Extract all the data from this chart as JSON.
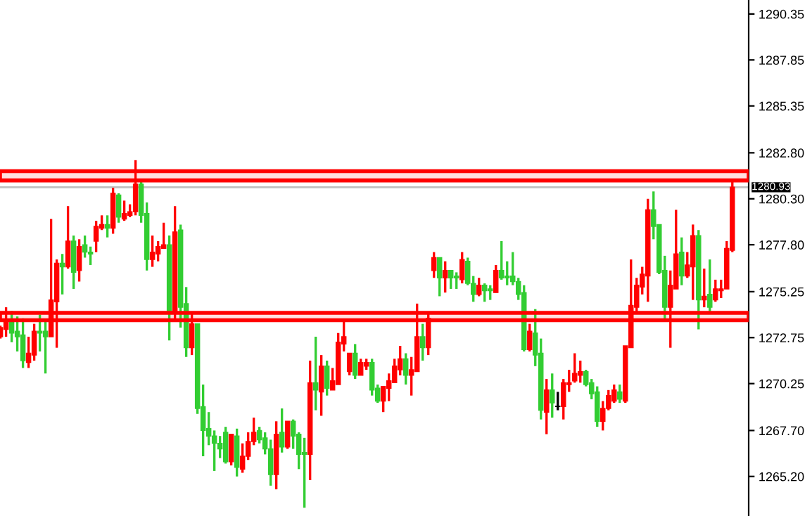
{
  "chart_data": {
    "type": "candlestick",
    "categories": [
      null,
      null,
      null,
      null,
      null,
      null,
      null,
      null,
      null,
      null,
      null,
      null,
      null,
      null,
      null,
      null,
      null,
      null,
      null,
      null,
      null,
      null,
      null,
      null,
      null,
      null,
      null,
      null,
      null,
      null,
      null,
      null,
      null,
      null,
      null,
      null,
      null,
      null,
      null,
      null,
      null,
      null,
      null,
      null,
      null,
      null,
      null,
      null,
      null,
      null,
      null,
      null,
      null,
      null,
      null,
      null,
      null,
      null,
      null,
      null,
      null,
      null,
      null,
      null,
      null,
      null,
      null,
      null,
      null,
      null,
      null,
      null,
      null,
      null,
      null,
      null,
      null,
      null,
      null,
      null,
      null,
      null,
      null,
      null,
      null,
      null,
      null,
      null,
      null,
      null,
      null,
      null,
      null,
      null,
      null,
      null,
      null,
      null,
      null,
      null,
      null,
      null,
      null,
      null,
      null,
      null,
      null,
      null,
      null,
      null,
      null,
      null,
      null,
      null,
      null,
      null,
      null,
      null,
      null,
      null,
      null,
      null,
      null,
      null,
      null,
      null,
      null,
      null,
      null,
      null,
      null
    ],
    "ohlc": [
      [
        1272.8,
        1273.4,
        1272.7,
        1273.3
      ],
      [
        1273.2,
        1274.4,
        1272.8,
        1273.6
      ],
      [
        1273.6,
        1274.2,
        1272.5,
        1273.0
      ],
      [
        1273.1,
        1273.9,
        1272.0,
        1272.8
      ],
      [
        1272.9,
        1273.8,
        1271.1,
        1271.5
      ],
      [
        1271.4,
        1272.8,
        1271.1,
        1271.9
      ],
      [
        1271.8,
        1273.5,
        1271.5,
        1273.1
      ],
      [
        1273.1,
        1274.0,
        1272.0,
        1273.0
      ],
      [
        1273.1,
        1273.6,
        1270.8,
        1272.8
      ],
      [
        1272.8,
        1279.2,
        1272.8,
        1274.8
      ],
      [
        1274.7,
        1277.0,
        1272.2,
        1276.8
      ],
      [
        1276.8,
        1277.3,
        1275.1,
        1276.6
      ],
      [
        1276.6,
        1279.9,
        1276.5,
        1278.0
      ],
      [
        1278.0,
        1278.3,
        1275.4,
        1276.3
      ],
      [
        1276.4,
        1278.1,
        1275.8,
        1277.7
      ],
      [
        1277.8,
        1278.3,
        1277.1,
        1277.4
      ],
      [
        1277.4,
        1277.7,
        1276.7,
        1277.3
      ],
      [
        1278.0,
        1279.1,
        1277.4,
        1278.8
      ],
      [
        1278.7,
        1279.4,
        1278.6,
        1278.9
      ],
      [
        1278.9,
        1279.4,
        1278.2,
        1278.7
      ],
      [
        1278.7,
        1280.9,
        1278.4,
        1280.6
      ],
      [
        1280.5,
        1280.6,
        1279.0,
        1279.3
      ],
      [
        1279.2,
        1280.2,
        1279.1,
        1279.5
      ],
      [
        1279.4,
        1280.0,
        1279.3,
        1279.6
      ],
      [
        1279.6,
        1282.4,
        1279.4,
        1281.1
      ],
      [
        1281.1,
        1281.4,
        1279.0,
        1279.4
      ],
      [
        1279.5,
        1280.1,
        1276.4,
        1277.0
      ],
      [
        1277.0,
        1278.3,
        1276.6,
        1277.4
      ],
      [
        1277.3,
        1278.0,
        1276.9,
        1277.7
      ],
      [
        1277.6,
        1279.0,
        1277.6,
        1277.8
      ],
      [
        1277.8,
        1278.3,
        1272.6,
        1274.1
      ],
      [
        1274.1,
        1279.9,
        1273.6,
        1278.5
      ],
      [
        1278.6,
        1278.9,
        1273.3,
        1274.4
      ],
      [
        1274.6,
        1275.5,
        1271.7,
        1272.2
      ],
      [
        1272.2,
        1274.1,
        1271.8,
        1273.5
      ],
      [
        1273.5,
        1273.5,
        1268.6,
        1268.9
      ],
      [
        1269.0,
        1270.2,
        1266.3,
        1267.7
      ],
      [
        1267.8,
        1268.7,
        1266.9,
        1267.4
      ],
      [
        1267.4,
        1267.7,
        1265.5,
        1267.0
      ],
      [
        1267.0,
        1267.4,
        1266.2,
        1266.7
      ],
      [
        1267.6,
        1267.9,
        1265.9,
        1266.0
      ],
      [
        1266.0,
        1267.5,
        1265.8,
        1267.5
      ],
      [
        1267.4,
        1267.8,
        1265.2,
        1265.7
      ],
      [
        1265.6,
        1267.0,
        1265.4,
        1266.3
      ],
      [
        1266.3,
        1267.6,
        1266.1,
        1267.1
      ],
      [
        1267.1,
        1268.4,
        1266.9,
        1267.6
      ],
      [
        1267.7,
        1267.9,
        1267.0,
        1267.2
      ],
      [
        1267.3,
        1267.6,
        1266.4,
        1266.7
      ],
      [
        1266.7,
        1267.2,
        1264.7,
        1265.3
      ],
      [
        1265.3,
        1268.2,
        1264.5,
        1267.5
      ],
      [
        1267.6,
        1268.9,
        1266.5,
        1266.8
      ],
      [
        1266.8,
        1268.2,
        1266.7,
        1268.2
      ],
      [
        1268.2,
        1268.3,
        1266.7,
        1267.4
      ],
      [
        1267.5,
        1267.6,
        1265.6,
        1266.4
      ],
      [
        1266.5,
        1267.3,
        1263.5,
        1266.4
      ],
      [
        1266.4,
        1271.5,
        1265.0,
        1270.3
      ],
      [
        1270.3,
        1272.8,
        1268.8,
        1269.9
      ],
      [
        1269.8,
        1271.8,
        1268.5,
        1271.2
      ],
      [
        1271.2,
        1271.5,
        1269.6,
        1270.0
      ],
      [
        1269.9,
        1271.1,
        1269.9,
        1270.4
      ],
      [
        1270.2,
        1273.0,
        1270.2,
        1272.5
      ],
      [
        1272.4,
        1273.7,
        1272.0,
        1272.8
      ],
      [
        1270.9,
        1271.9,
        1270.7,
        1271.9
      ],
      [
        1271.9,
        1272.4,
        1270.5,
        1270.7
      ],
      [
        1270.7,
        1271.6,
        1270.7,
        1271.4
      ],
      [
        1271.2,
        1271.6,
        1271.0,
        1271.4
      ],
      [
        1271.4,
        1271.6,
        1269.6,
        1269.9
      ],
      [
        1270.0,
        1270.2,
        1269.2,
        1269.3
      ],
      [
        1269.3,
        1270.1,
        1268.7,
        1270.1
      ],
      [
        1270.0,
        1270.8,
        1269.3,
        1270.4
      ],
      [
        1270.3,
        1271.6,
        1270.3,
        1271.2
      ],
      [
        1271.0,
        1272.3,
        1270.7,
        1271.6
      ],
      [
        1271.6,
        1271.9,
        1270.2,
        1270.7
      ],
      [
        1270.7,
        1271.7,
        1269.6,
        1271.0
      ],
      [
        1270.9,
        1274.6,
        1270.9,
        1272.8
      ],
      [
        1272.8,
        1273.5,
        1271.5,
        1272.2
      ],
      [
        1272.2,
        1274.1,
        1271.8,
        1273.8
      ],
      [
        1276.4,
        1277.4,
        1276.0,
        1277.1
      ],
      [
        1277.1,
        1277.1,
        1275.0,
        1276.0
      ],
      [
        1276.0,
        1276.9,
        1275.2,
        1276.4
      ],
      [
        1276.4,
        1276.4,
        1275.4,
        1276.0
      ],
      [
        1276.1,
        1276.3,
        1275.4,
        1276.0
      ],
      [
        1275.9,
        1277.4,
        1275.7,
        1277.0
      ],
      [
        1276.9,
        1277.1,
        1275.6,
        1275.7
      ],
      [
        1275.7,
        1276.1,
        1274.7,
        1275.1
      ],
      [
        1275.1,
        1276.0,
        1275.0,
        1275.6
      ],
      [
        1275.6,
        1275.7,
        1274.7,
        1275.3
      ],
      [
        1275.4,
        1275.6,
        1274.8,
        1275.3
      ],
      [
        1275.2,
        1276.7,
        1275.2,
        1276.4
      ],
      [
        1276.4,
        1278.0,
        1275.9,
        1276.0
      ],
      [
        1276.1,
        1276.9,
        1275.6,
        1276.0
      ],
      [
        1276.1,
        1277.4,
        1275.6,
        1275.8
      ],
      [
        1275.8,
        1276.0,
        1274.8,
        1275.1
      ],
      [
        1275.2,
        1275.6,
        1272.0,
        1272.1
      ],
      [
        1272.1,
        1273.5,
        1272.0,
        1273.1
      ],
      [
        1273.0,
        1274.3,
        1271.2,
        1271.8
      ],
      [
        1271.9,
        1272.7,
        1268.3,
        1268.8
      ],
      [
        1268.7,
        1270.5,
        1267.5,
        1269.9
      ],
      [
        1269.9,
        1270.8,
        1268.4,
        1269.2
      ],
      [
        1269.0,
        1269.8,
        1268.8,
        1269.0
      ],
      [
        1269.0,
        1270.5,
        1268.3,
        1270.3
      ],
      [
        1270.2,
        1271.0,
        1269.8,
        1270.3
      ],
      [
        1270.4,
        1271.9,
        1270.3,
        1270.8
      ],
      [
        1270.7,
        1271.5,
        1270.3,
        1270.9
      ],
      [
        1270.9,
        1271.0,
        1270.1,
        1270.2
      ],
      [
        1270.3,
        1270.5,
        1269.4,
        1269.7
      ],
      [
        1269.8,
        1270.1,
        1267.9,
        1268.2
      ],
      [
        1268.2,
        1269.3,
        1267.7,
        1268.9
      ],
      [
        1268.9,
        1269.9,
        1268.8,
        1269.6
      ],
      [
        1269.3,
        1270.2,
        1269.2,
        1269.9
      ],
      [
        1269.8,
        1270.2,
        1269.2,
        1269.4
      ],
      [
        1269.3,
        1272.3,
        1269.2,
        1272.3
      ],
      [
        1272.2,
        1277.0,
        1272.2,
        1274.5
      ],
      [
        1274.4,
        1276.0,
        1274.1,
        1275.6
      ],
      [
        1275.5,
        1276.6,
        1275.1,
        1276.2
      ],
      [
        1276.1,
        1280.3,
        1274.7,
        1279.7
      ],
      [
        1279.7,
        1280.7,
        1278.1,
        1278.8
      ],
      [
        1278.9,
        1278.9,
        1276.2,
        1276.3
      ],
      [
        1276.4,
        1277.2,
        1273.7,
        1274.4
      ],
      [
        1274.4,
        1276.4,
        1272.2,
        1275.6
      ],
      [
        1275.4,
        1279.7,
        1275.4,
        1277.3
      ],
      [
        1277.4,
        1278.2,
        1275.6,
        1276.1
      ],
      [
        1276.1,
        1277.4,
        1276.0,
        1276.7
      ],
      [
        1276.6,
        1278.9,
        1274.8,
        1278.3
      ],
      [
        1278.3,
        1278.6,
        1273.2,
        1274.8
      ],
      [
        1274.8,
        1276.5,
        1274.4,
        1275.0
      ],
      [
        1275.1,
        1277.0,
        1274.1,
        1274.4
      ],
      [
        1274.8,
        1275.9,
        1274.7,
        1275.4
      ],
      [
        1275.3,
        1275.9,
        1274.9,
        1275.4
      ],
      [
        1275.4,
        1278.0,
        1275.4,
        1277.6
      ],
      [
        1277.5,
        1281.3,
        1277.4,
        1280.93
      ]
    ],
    "colors": [
      "#ff0000",
      "#ff0000",
      "#32cd32",
      "#32cd32",
      "#32cd32",
      "#ff0000",
      "#ff0000",
      "#32cd32",
      "#32cd32",
      "#ff0000",
      "#ff0000",
      "#32cd32",
      "#ff0000",
      "#32cd32",
      "#ff0000",
      "#32cd32",
      "#32cd32",
      "#ff0000",
      "#ff0000",
      "#32cd32",
      "#ff0000",
      "#32cd32",
      "#ff0000",
      "#ff0000",
      "#ff0000",
      "#32cd32",
      "#32cd32",
      "#ff0000",
      "#ff0000",
      "#ff0000",
      "#32cd32",
      "#ff0000",
      "#32cd32",
      "#32cd32",
      "#ff0000",
      "#32cd32",
      "#32cd32",
      "#32cd32",
      "#32cd32",
      "#32cd32",
      "#32cd32",
      "#ff0000",
      "#32cd32",
      "#ff0000",
      "#ff0000",
      "#ff0000",
      "#32cd32",
      "#32cd32",
      "#32cd32",
      "#ff0000",
      "#32cd32",
      "#ff0000",
      "#32cd32",
      "#32cd32",
      "#32cd32",
      "#ff0000",
      "#32cd32",
      "#ff0000",
      "#32cd32",
      "#ff0000",
      "#ff0000",
      "#ff0000",
      "#ff0000",
      "#32cd32",
      "#ff0000",
      "#ff0000",
      "#32cd32",
      "#32cd32",
      "#ff0000",
      "#ff0000",
      "#ff0000",
      "#ff0000",
      "#32cd32",
      "#ff0000",
      "#ff0000",
      "#32cd32",
      "#ff0000",
      "#ff0000",
      "#32cd32",
      "#ff0000",
      "#32cd32",
      "#32cd32",
      "#ff0000",
      "#32cd32",
      "#32cd32",
      "#ff0000",
      "#32cd32",
      "#32cd32",
      "#ff0000",
      "#32cd32",
      "#32cd32",
      "#32cd32",
      "#32cd32",
      "#32cd32",
      "#ff0000",
      "#32cd32",
      "#32cd32",
      "#ff0000",
      "#32cd32",
      "#000000",
      "#ff0000",
      "#ff0000",
      "#ff0000",
      "#ff0000",
      "#32cd32",
      "#32cd32",
      "#32cd32",
      "#ff0000",
      "#ff0000",
      "#ff0000",
      "#32cd32",
      "#ff0000",
      "#ff0000",
      "#ff0000",
      "#ff0000",
      "#ff0000",
      "#32cd32",
      "#32cd32",
      "#32cd32",
      "#ff0000",
      "#ff0000",
      "#32cd32",
      "#ff0000",
      "#ff0000",
      "#32cd32",
      "#ff0000",
      "#32cd32",
      "#ff0000",
      "#ff0000",
      "#ff0000",
      "#ff0000"
    ],
    "ylim": [
      1263.05,
      1291.11
    ],
    "yticks": [
      1290.35,
      1287.85,
      1285.35,
      {
        "value": 1282.8,
        "label": "1282.80"
      },
      {
        "value": 1280.3,
        "label": "1280.30"
      },
      {
        "value": 1277.8,
        "label": "1277.80"
      },
      1275.25,
      1272.75,
      1270.25,
      {
        "value": 1267.7,
        "label": "1267.70"
      },
      {
        "value": 1265.2,
        "label": "1265.20"
      }
    ],
    "tick_labels": "y",
    "grid": false,
    "legend": false,
    "ref_lines": [
      {
        "axis": "y",
        "value": 1280.93,
        "label": "1280.93",
        "color": "#c0c0c0"
      }
    ],
    "bands": [
      {
        "axis": "y",
        "from": 1281.3,
        "to": 1281.8,
        "color": "#ff0000"
      },
      {
        "axis": "y",
        "from": 1273.7,
        "to": 1274.1,
        "color": "#ff0000"
      }
    ]
  }
}
